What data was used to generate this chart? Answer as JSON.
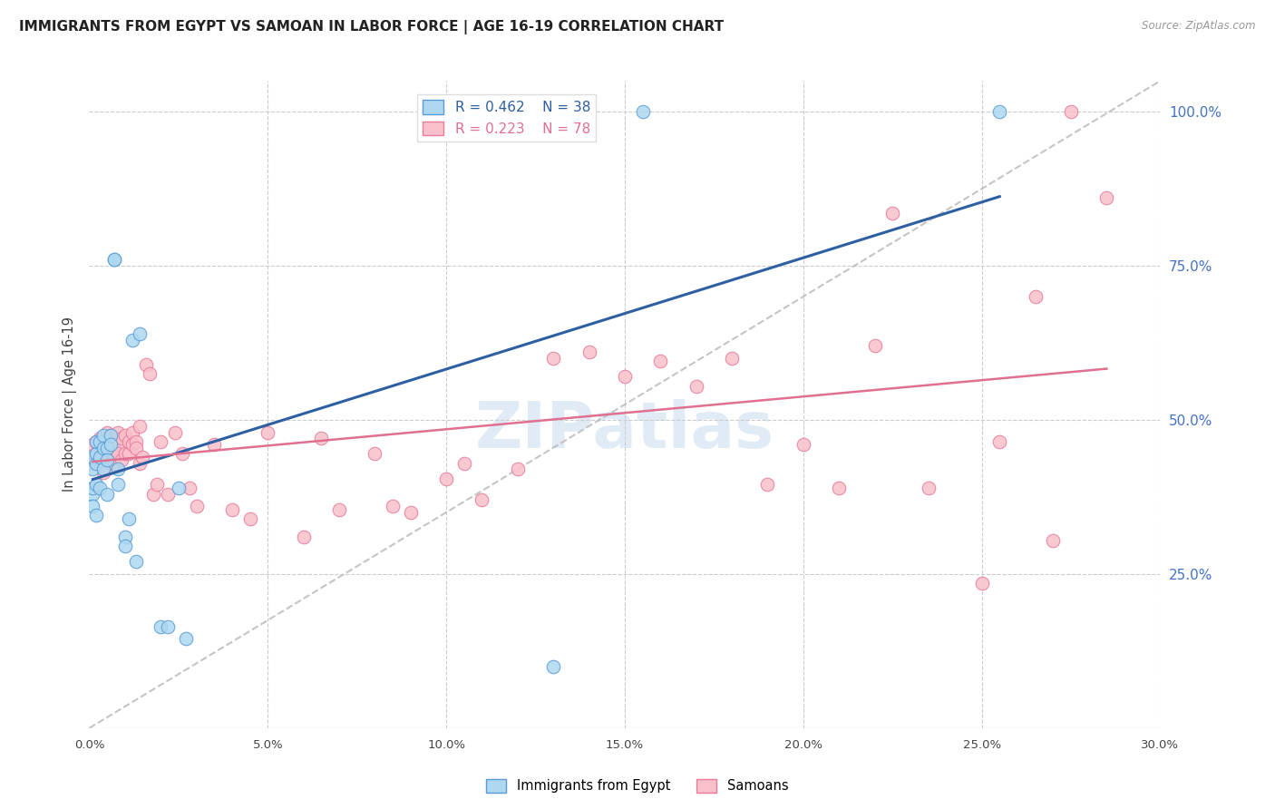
{
  "title": "IMMIGRANTS FROM EGYPT VS SAMOAN IN LABOR FORCE | AGE 16-19 CORRELATION CHART",
  "source": "Source: ZipAtlas.com",
  "ylabel": "In Labor Force | Age 16-19",
  "right_ytick_labels": [
    "100.0%",
    "75.0%",
    "50.0%",
    "25.0%"
  ],
  "right_ytick_values": [
    1.0,
    0.75,
    0.5,
    0.25
  ],
  "x_bottom_ticks": [
    "0.0%",
    "5.0%",
    "10.0%",
    "15.0%",
    "20.0%",
    "25.0%",
    "30.0%"
  ],
  "x_bottom_values": [
    0.0,
    0.05,
    0.1,
    0.15,
    0.2,
    0.25,
    0.3
  ],
  "xlim": [
    0.0,
    0.3
  ],
  "ylim": [
    0.0,
    1.05
  ],
  "egypt_color": "#ADD8F0",
  "egypt_edge_color": "#5B9BD5",
  "samoan_color": "#F9C0CB",
  "samoan_edge_color": "#E87B9B",
  "egypt_line_color": "#2E5FA3",
  "samoan_line_color": "#E07090",
  "diag_line_color": "#BBBBBB",
  "legend_egypt_R": "0.462",
  "legend_egypt_N": "38",
  "legend_samoan_R": "0.223",
  "legend_samoan_N": "78",
  "legend_egypt_label": "Immigrants from Egypt",
  "legend_samoan_label": "Samoans",
  "watermark": "ZIPatlas",
  "egypt_x": [
    0.001,
    0.001,
    0.001,
    0.001,
    0.001,
    0.002,
    0.002,
    0.002,
    0.002,
    0.002,
    0.003,
    0.003,
    0.003,
    0.004,
    0.004,
    0.004,
    0.005,
    0.005,
    0.005,
    0.006,
    0.006,
    0.007,
    0.007,
    0.008,
    0.008,
    0.01,
    0.01,
    0.011,
    0.012,
    0.013,
    0.014,
    0.02,
    0.022,
    0.025,
    0.027,
    0.13,
    0.155,
    0.255
  ],
  "egypt_y": [
    0.42,
    0.38,
    0.36,
    0.44,
    0.39,
    0.43,
    0.445,
    0.465,
    0.395,
    0.345,
    0.465,
    0.44,
    0.39,
    0.475,
    0.455,
    0.42,
    0.455,
    0.435,
    0.38,
    0.475,
    0.46,
    0.76,
    0.76,
    0.42,
    0.395,
    0.31,
    0.295,
    0.34,
    0.63,
    0.27,
    0.64,
    0.165,
    0.165,
    0.39,
    0.145,
    0.1,
    1.0,
    1.0
  ],
  "samoan_x": [
    0.001,
    0.001,
    0.002,
    0.002,
    0.003,
    0.003,
    0.003,
    0.004,
    0.004,
    0.004,
    0.005,
    0.005,
    0.005,
    0.005,
    0.006,
    0.006,
    0.006,
    0.007,
    0.007,
    0.007,
    0.008,
    0.008,
    0.008,
    0.009,
    0.009,
    0.01,
    0.01,
    0.011,
    0.011,
    0.012,
    0.012,
    0.013,
    0.013,
    0.014,
    0.014,
    0.015,
    0.016,
    0.017,
    0.018,
    0.019,
    0.02,
    0.022,
    0.024,
    0.026,
    0.028,
    0.03,
    0.035,
    0.04,
    0.045,
    0.05,
    0.06,
    0.065,
    0.07,
    0.08,
    0.085,
    0.09,
    0.1,
    0.105,
    0.11,
    0.12,
    0.13,
    0.14,
    0.15,
    0.16,
    0.17,
    0.18,
    0.19,
    0.2,
    0.21,
    0.22,
    0.225,
    0.235,
    0.25,
    0.255,
    0.265,
    0.27,
    0.275,
    0.285
  ],
  "samoan_y": [
    0.43,
    0.46,
    0.445,
    0.465,
    0.43,
    0.455,
    0.47,
    0.445,
    0.43,
    0.415,
    0.44,
    0.455,
    0.48,
    0.465,
    0.43,
    0.45,
    0.475,
    0.445,
    0.465,
    0.43,
    0.46,
    0.445,
    0.48,
    0.435,
    0.47,
    0.445,
    0.475,
    0.445,
    0.465,
    0.48,
    0.46,
    0.465,
    0.455,
    0.43,
    0.49,
    0.44,
    0.59,
    0.575,
    0.38,
    0.395,
    0.465,
    0.38,
    0.48,
    0.445,
    0.39,
    0.36,
    0.46,
    0.355,
    0.34,
    0.48,
    0.31,
    0.47,
    0.355,
    0.445,
    0.36,
    0.35,
    0.405,
    0.43,
    0.37,
    0.42,
    0.6,
    0.61,
    0.57,
    0.595,
    0.555,
    0.6,
    0.395,
    0.46,
    0.39,
    0.62,
    0.835,
    0.39,
    0.235,
    0.465,
    0.7,
    0.305,
    1.0,
    0.86
  ]
}
